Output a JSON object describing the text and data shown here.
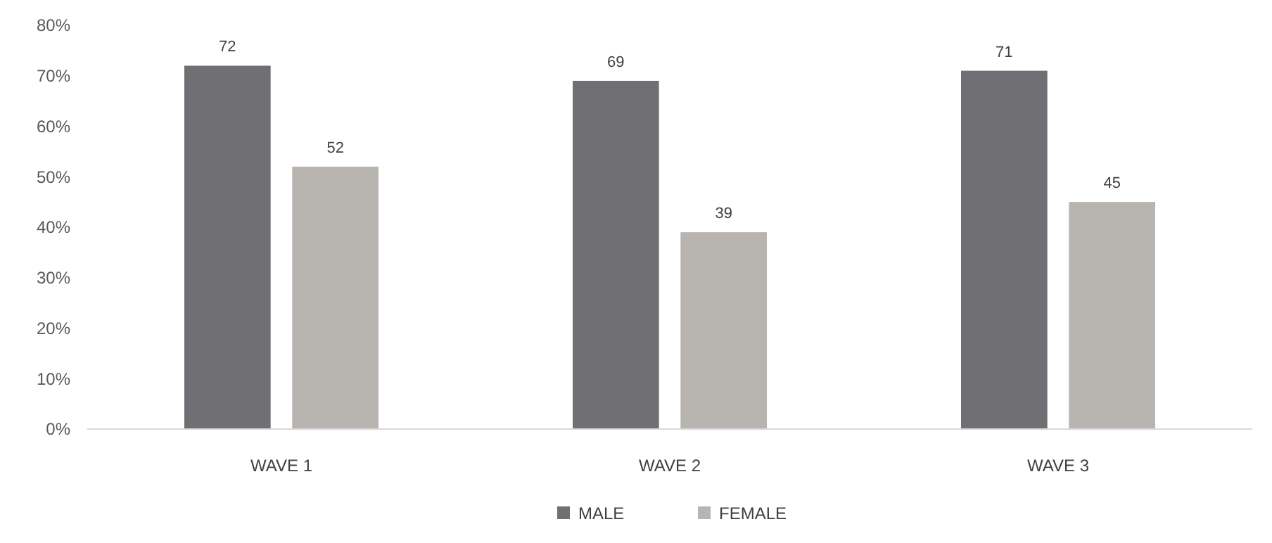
{
  "chart_data": {
    "type": "bar",
    "categories": [
      "WAVE 1",
      "WAVE 2",
      "WAVE 3"
    ],
    "series": [
      {
        "name": "MALE",
        "color": "#707074",
        "values": [
          72,
          69,
          71
        ]
      },
      {
        "name": "FEMALE",
        "color": "#b8b4b0",
        "values": [
          52,
          39,
          45
        ]
      }
    ],
    "ylim": [
      0,
      80
    ],
    "yticks": [
      {
        "value": 0,
        "label": "0%"
      },
      {
        "value": 10,
        "label": "10%"
      },
      {
        "value": 20,
        "label": "20%"
      },
      {
        "value": 30,
        "label": "30%"
      },
      {
        "value": 40,
        "label": "40%"
      },
      {
        "value": 50,
        "label": "50%"
      },
      {
        "value": 60,
        "label": "60%"
      },
      {
        "value": 70,
        "label": "70%"
      },
      {
        "value": 80,
        "label": "80%"
      }
    ],
    "data_labels": true,
    "grid": false,
    "legend": "bottom"
  }
}
